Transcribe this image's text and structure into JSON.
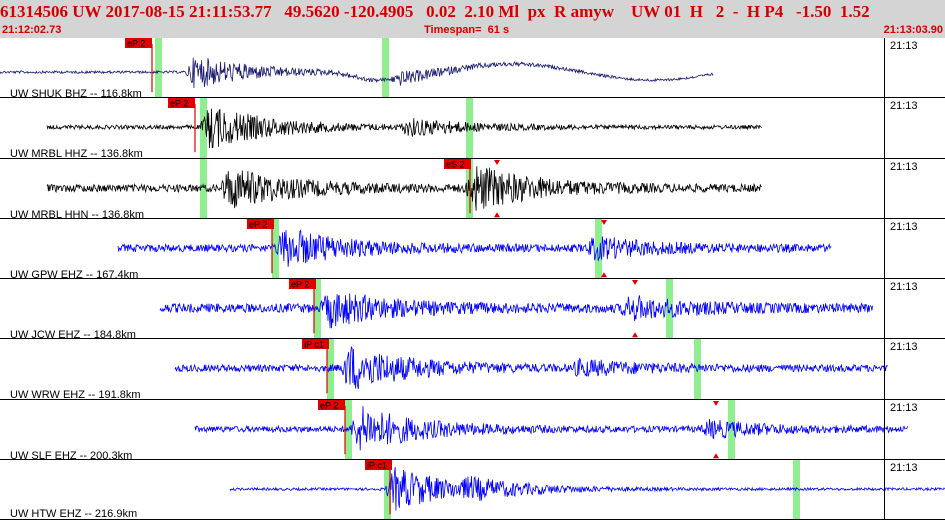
{
  "header": {
    "title": "61314506 UW 2017-08-15 21:11:53.77   49.5620 -120.4905   0.02  2.10 Ml  px  R amyw    UW 01  H   2  -  H P4   -1.50  1.52",
    "start_time": "21:12:02.73",
    "timespan": "Timespan=  61 s",
    "end_time": "21:13:03.90"
  },
  "colors": {
    "header_bg": "#d4d4d4",
    "header_text": "#d40000",
    "pick": "#e00000",
    "window": "#90ee90",
    "trace_navy": "#1a1a6e",
    "trace_black": "#000000",
    "trace_blue": "#0000ff"
  },
  "traces": [
    {
      "station": "UW SHUK BHZ -- 116.8km",
      "time": "21:13",
      "pick_label": "eP 2",
      "color": "#1a1a6e"
    },
    {
      "station": "UW MRBL HHZ -- 136.8km",
      "time": "21:13",
      "pick_label": "eP 2",
      "color": "#000000"
    },
    {
      "station": "UW MRBL HHN -- 136.8km",
      "time": "21:13",
      "pick_label": "eS 2",
      "color": "#000000"
    },
    {
      "station": "UW GPW EHZ -- 167.4km",
      "time": "21:13",
      "pick_label": "eP 2",
      "color": "#0000ff"
    },
    {
      "station": "UW JCW EHZ -- 184.8km",
      "time": "21:13",
      "pick_label": "eP 2",
      "color": "#0000ff"
    },
    {
      "station": "UW WRW EHZ -- 191.8km",
      "time": "21:13",
      "pick_label": "iP c1",
      "color": "#0000ff"
    },
    {
      "station": "UW SLF EHZ -- 200.3km",
      "time": "21:13",
      "pick_label": "eP 2",
      "color": "#0000ff"
    },
    {
      "station": "UW HTW EHZ -- 216.9km",
      "time": "21:13",
      "pick_label": "iP c1",
      "color": "#0000ff"
    }
  ]
}
